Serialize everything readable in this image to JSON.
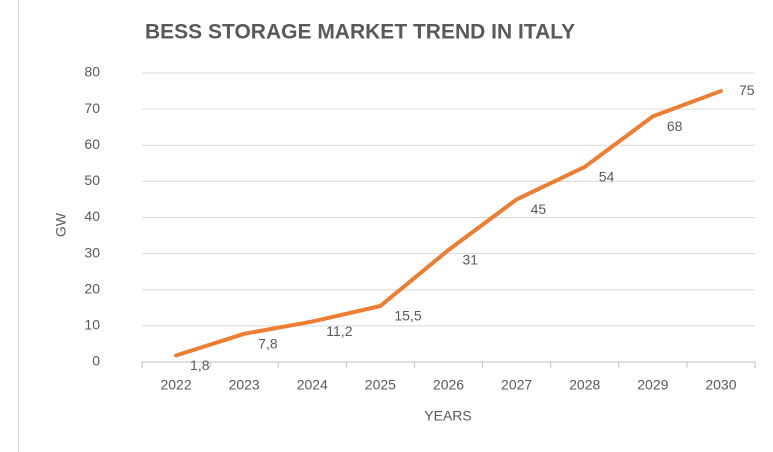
{
  "chart_data": {
    "type": "line",
    "title": "BESS STORAGE MARKET TREND IN ITALY",
    "x_label": "YEARS",
    "y_label": "GW",
    "categories": [
      "2022",
      "2023",
      "2024",
      "2025",
      "2026",
      "2027",
      "2028",
      "2029",
      "2030"
    ],
    "series": [
      {
        "name": "BESS",
        "color": "#ed7d31",
        "values": [
          1.8,
          7.8,
          11.2,
          15.5,
          31,
          45,
          54,
          68,
          75
        ],
        "value_labels": [
          "1,8",
          "7,8",
          "11,2",
          "15,5",
          "31",
          "45",
          "54",
          "68",
          "75"
        ]
      }
    ],
    "ylim": [
      0,
      80
    ],
    "yticks": [
      0,
      10,
      20,
      30,
      40,
      50,
      60,
      70,
      80
    ],
    "grid": true
  }
}
